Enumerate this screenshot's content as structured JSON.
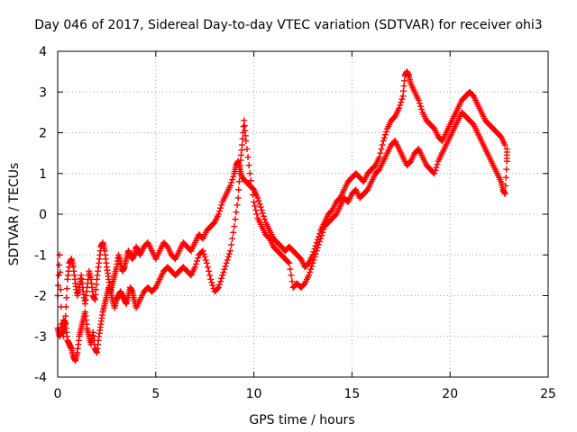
{
  "chart_data": {
    "type": "scatter",
    "title": "Day 046 of 2017, Sidereal Day-to-day VTEC variation (SDTVAR) for receiver ohi3",
    "xlabel": "GPS time / hours",
    "ylabel": "SDTVAR / TECUs",
    "xlim": [
      0,
      25
    ],
    "ylim": [
      -4,
      4
    ],
    "xticks": [
      "0",
      "5",
      "10",
      "15",
      "20",
      "25"
    ],
    "yticks": [
      "-4",
      "-3",
      "-2",
      "-1",
      "0",
      "1",
      "2",
      "3",
      "4"
    ],
    "grid": true,
    "legend": "none",
    "marker": "plus",
    "color": "#ff0000",
    "series": [
      {
        "values": [
          [
            0.0,
            -2.0
          ],
          [
            0.1,
            -1.0
          ],
          [
            0.2,
            -2.7
          ],
          [
            0.3,
            -3.0
          ],
          [
            0.4,
            -2.5
          ],
          [
            0.5,
            -1.6
          ],
          [
            0.6,
            -1.2
          ],
          [
            0.7,
            -1.1
          ],
          [
            0.8,
            -1.3
          ],
          [
            0.9,
            -1.7
          ],
          [
            1.0,
            -2.0
          ],
          [
            1.1,
            -1.8
          ],
          [
            1.2,
            -1.5
          ],
          [
            1.3,
            -1.9
          ],
          [
            1.4,
            -2.2
          ],
          [
            1.5,
            -1.8
          ],
          [
            1.6,
            -1.4
          ],
          [
            1.7,
            -1.6
          ],
          [
            1.8,
            -2.0
          ],
          [
            1.9,
            -2.1
          ],
          [
            2.0,
            -1.6
          ],
          [
            2.1,
            -1.2
          ],
          [
            2.2,
            -0.8
          ],
          [
            2.3,
            -0.7
          ],
          [
            2.4,
            -0.9
          ],
          [
            2.5,
            -1.3
          ],
          [
            2.6,
            -1.6
          ],
          [
            2.7,
            -1.9
          ],
          [
            2.8,
            -1.7
          ],
          [
            2.9,
            -1.5
          ],
          [
            3.0,
            -1.3
          ],
          [
            3.1,
            -1.0
          ],
          [
            3.2,
            -1.2
          ],
          [
            3.3,
            -1.4
          ],
          [
            3.4,
            -1.3
          ],
          [
            3.5,
            -1.1
          ],
          [
            3.6,
            -0.9
          ],
          [
            3.7,
            -1.0
          ],
          [
            3.8,
            -1.1
          ],
          [
            3.9,
            -1.0
          ],
          [
            4.0,
            -0.8
          ],
          [
            4.1,
            -0.9
          ],
          [
            4.2,
            -1.0
          ],
          [
            4.4,
            -0.8
          ],
          [
            4.6,
            -0.7
          ],
          [
            4.8,
            -0.9
          ],
          [
            5.0,
            -1.1
          ],
          [
            5.2,
            -0.9
          ],
          [
            5.4,
            -0.7
          ],
          [
            5.6,
            -0.8
          ],
          [
            5.8,
            -1.0
          ],
          [
            6.0,
            -1.1
          ],
          [
            6.2,
            -0.9
          ],
          [
            6.4,
            -0.7
          ],
          [
            6.6,
            -0.8
          ],
          [
            6.8,
            -0.9
          ],
          [
            7.0,
            -0.7
          ],
          [
            7.2,
            -0.5
          ],
          [
            7.4,
            -0.6
          ],
          [
            7.6,
            -0.4
          ],
          [
            7.8,
            -0.3
          ],
          [
            8.0,
            -0.2
          ],
          [
            8.2,
            0.0
          ],
          [
            8.4,
            0.3
          ],
          [
            8.6,
            0.5
          ],
          [
            8.8,
            0.7
          ],
          [
            9.0,
            1.0
          ],
          [
            9.1,
            1.2
          ],
          [
            9.2,
            1.3
          ],
          [
            9.3,
            1.1
          ],
          [
            9.4,
            0.9
          ],
          [
            9.6,
            0.8
          ],
          [
            9.8,
            0.7
          ],
          [
            10.0,
            0.6
          ],
          [
            10.2,
            0.4
          ],
          [
            10.4,
            0.1
          ],
          [
            10.6,
            -0.2
          ],
          [
            10.8,
            -0.4
          ],
          [
            11.0,
            -0.6
          ],
          [
            11.2,
            -0.7
          ],
          [
            11.4,
            -0.8
          ],
          [
            11.6,
            -0.9
          ],
          [
            11.8,
            -0.8
          ],
          [
            12.0,
            -0.9
          ],
          [
            12.2,
            -1.0
          ],
          [
            12.4,
            -1.1
          ],
          [
            12.6,
            -1.3
          ],
          [
            12.8,
            -1.2
          ],
          [
            13.0,
            -1.0
          ],
          [
            13.2,
            -0.7
          ],
          [
            13.4,
            -0.4
          ],
          [
            13.6,
            -0.2
          ],
          [
            13.8,
            0.0
          ],
          [
            14.0,
            0.1
          ],
          [
            14.2,
            0.3
          ],
          [
            14.4,
            0.4
          ],
          [
            14.6,
            0.6
          ],
          [
            14.8,
            0.8
          ],
          [
            15.0,
            0.9
          ],
          [
            15.2,
            1.0
          ],
          [
            15.4,
            0.9
          ],
          [
            15.6,
            0.8
          ],
          [
            15.8,
            1.0
          ],
          [
            16.0,
            1.1
          ],
          [
            16.2,
            1.2
          ],
          [
            16.4,
            1.4
          ],
          [
            16.6,
            1.8
          ],
          [
            16.8,
            2.1
          ],
          [
            17.0,
            2.3
          ],
          [
            17.2,
            2.4
          ],
          [
            17.4,
            2.6
          ],
          [
            17.6,
            2.9
          ],
          [
            17.7,
            3.4
          ],
          [
            17.8,
            3.5
          ],
          [
            17.9,
            3.4
          ],
          [
            18.0,
            3.2
          ],
          [
            18.2,
            3.0
          ],
          [
            18.4,
            2.8
          ],
          [
            18.6,
            2.5
          ],
          [
            18.8,
            2.3
          ],
          [
            19.0,
            2.2
          ],
          [
            19.2,
            2.1
          ],
          [
            19.4,
            1.9
          ],
          [
            19.6,
            1.8
          ],
          [
            19.8,
            2.0
          ],
          [
            20.0,
            2.2
          ],
          [
            20.2,
            2.4
          ],
          [
            20.4,
            2.6
          ],
          [
            20.6,
            2.8
          ],
          [
            20.8,
            2.9
          ],
          [
            21.0,
            3.0
          ],
          [
            21.2,
            2.9
          ],
          [
            21.4,
            2.7
          ],
          [
            21.6,
            2.5
          ],
          [
            21.8,
            2.3
          ],
          [
            22.0,
            2.2
          ],
          [
            22.2,
            2.1
          ],
          [
            22.4,
            2.0
          ],
          [
            22.6,
            1.9
          ],
          [
            22.8,
            1.7
          ]
        ]
      },
      {
        "values": [
          [
            0.0,
            -2.8
          ],
          [
            0.1,
            -3.0
          ],
          [
            0.2,
            -2.9
          ],
          [
            0.3,
            -2.6
          ],
          [
            0.4,
            -2.7
          ],
          [
            0.5,
            -3.1
          ],
          [
            0.6,
            -3.2
          ],
          [
            0.7,
            -3.3
          ],
          [
            0.8,
            -3.5
          ],
          [
            0.9,
            -3.6
          ],
          [
            1.0,
            -3.4
          ],
          [
            1.1,
            -3.0
          ],
          [
            1.2,
            -2.8
          ],
          [
            1.3,
            -2.6
          ],
          [
            1.4,
            -2.4
          ],
          [
            1.5,
            -2.8
          ],
          [
            1.6,
            -3.0
          ],
          [
            1.7,
            -3.2
          ],
          [
            1.8,
            -2.9
          ],
          [
            1.9,
            -3.3
          ],
          [
            2.0,
            -3.4
          ],
          [
            2.1,
            -3.0
          ],
          [
            2.2,
            -2.7
          ],
          [
            2.3,
            -2.4
          ],
          [
            2.4,
            -2.2
          ],
          [
            2.5,
            -2.0
          ],
          [
            2.6,
            -1.8
          ],
          [
            2.7,
            -1.9
          ],
          [
            2.8,
            -2.1
          ],
          [
            2.9,
            -2.3
          ],
          [
            3.0,
            -2.1
          ],
          [
            3.1,
            -2.0
          ],
          [
            3.2,
            -1.9
          ],
          [
            3.3,
            -2.0
          ],
          [
            3.4,
            -2.1
          ],
          [
            3.5,
            -2.2
          ],
          [
            3.6,
            -2.0
          ],
          [
            3.7,
            -1.8
          ],
          [
            3.8,
            -1.9
          ],
          [
            3.9,
            -2.1
          ],
          [
            4.0,
            -2.3
          ],
          [
            4.2,
            -2.1
          ],
          [
            4.4,
            -1.9
          ],
          [
            4.6,
            -1.8
          ],
          [
            4.8,
            -1.9
          ],
          [
            5.0,
            -1.8
          ],
          [
            5.2,
            -1.6
          ],
          [
            5.4,
            -1.4
          ],
          [
            5.6,
            -1.3
          ],
          [
            5.8,
            -1.4
          ],
          [
            6.0,
            -1.5
          ],
          [
            6.2,
            -1.4
          ],
          [
            6.4,
            -1.3
          ],
          [
            6.6,
            -1.4
          ],
          [
            6.8,
            -1.5
          ],
          [
            7.0,
            -1.3
          ],
          [
            7.2,
            -1.0
          ],
          [
            7.4,
            -0.9
          ],
          [
            7.6,
            -1.2
          ],
          [
            7.8,
            -1.6
          ],
          [
            8.0,
            -1.9
          ],
          [
            8.2,
            -1.8
          ],
          [
            8.4,
            -1.5
          ],
          [
            8.6,
            -1.2
          ],
          [
            8.8,
            -0.9
          ],
          [
            9.0,
            -0.3
          ],
          [
            9.2,
            0.4
          ],
          [
            9.3,
            1.2
          ],
          [
            9.4,
            1.7
          ],
          [
            9.5,
            2.3
          ],
          [
            9.6,
            1.8
          ],
          [
            9.8,
            1.0
          ],
          [
            10.0,
            0.3
          ],
          [
            10.2,
            -0.1
          ],
          [
            10.4,
            -0.3
          ],
          [
            10.6,
            -0.5
          ],
          [
            10.8,
            -0.6
          ],
          [
            11.0,
            -0.8
          ],
          [
            11.2,
            -0.9
          ],
          [
            11.4,
            -1.0
          ],
          [
            11.6,
            -1.1
          ],
          [
            11.8,
            -1.2
          ],
          [
            12.0,
            -1.8
          ],
          [
            12.2,
            -1.7
          ],
          [
            12.4,
            -1.8
          ],
          [
            12.6,
            -1.7
          ],
          [
            12.8,
            -1.5
          ],
          [
            13.0,
            -1.2
          ],
          [
            13.2,
            -0.9
          ],
          [
            13.4,
            -0.6
          ],
          [
            13.6,
            -0.3
          ],
          [
            13.8,
            -0.2
          ],
          [
            14.0,
            -0.1
          ],
          [
            14.2,
            0.0
          ],
          [
            14.4,
            0.2
          ],
          [
            14.6,
            0.4
          ],
          [
            14.8,
            0.3
          ],
          [
            15.0,
            0.5
          ],
          [
            15.2,
            0.6
          ],
          [
            15.4,
            0.4
          ],
          [
            15.6,
            0.5
          ],
          [
            15.8,
            0.6
          ],
          [
            16.0,
            0.8
          ],
          [
            16.2,
            1.0
          ],
          [
            16.4,
            1.1
          ],
          [
            16.6,
            1.3
          ],
          [
            16.8,
            1.5
          ],
          [
            17.0,
            1.7
          ],
          [
            17.2,
            1.8
          ],
          [
            17.4,
            1.6
          ],
          [
            17.6,
            1.4
          ],
          [
            17.8,
            1.2
          ],
          [
            18.0,
            1.3
          ],
          [
            18.2,
            1.5
          ],
          [
            18.4,
            1.6
          ],
          [
            18.6,
            1.4
          ],
          [
            18.8,
            1.2
          ],
          [
            19.0,
            1.1
          ],
          [
            19.2,
            1.0
          ],
          [
            19.4,
            1.3
          ],
          [
            19.6,
            1.5
          ],
          [
            19.8,
            1.7
          ],
          [
            20.0,
            1.9
          ],
          [
            20.2,
            2.1
          ],
          [
            20.4,
            2.3
          ],
          [
            20.6,
            2.5
          ],
          [
            20.8,
            2.4
          ],
          [
            21.0,
            2.3
          ],
          [
            21.2,
            2.2
          ],
          [
            21.4,
            2.0
          ],
          [
            21.6,
            1.8
          ],
          [
            21.8,
            1.6
          ],
          [
            22.0,
            1.4
          ],
          [
            22.2,
            1.2
          ],
          [
            22.4,
            1.0
          ],
          [
            22.6,
            0.8
          ],
          [
            22.7,
            0.6
          ],
          [
            22.8,
            0.5
          ],
          [
            22.9,
            1.3
          ],
          [
            22.9,
            1.6
          ]
        ]
      }
    ]
  }
}
